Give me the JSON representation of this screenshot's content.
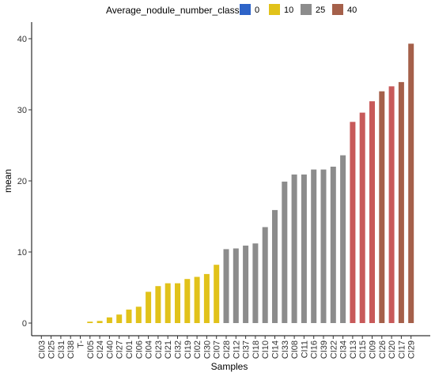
{
  "chart_data": {
    "type": "bar",
    "xlabel": "Samples",
    "ylabel": "mean",
    "ylim": [
      0,
      40
    ],
    "yticks": [
      0,
      10,
      20,
      30,
      40
    ],
    "grid": false,
    "legend": {
      "placement": "top",
      "title": "Average_nodule_number_class",
      "entries": [
        {
          "label": "0",
          "color": "#2e64c8"
        },
        {
          "label": "10",
          "color": "#e1c21a"
        },
        {
          "label": "25",
          "color": "#8c8c8c"
        },
        {
          "label": "40",
          "color": "#a5604a"
        }
      ]
    },
    "categories": [
      "CI03",
      "CI25",
      "CI31",
      "CI38",
      "T-",
      "CI05",
      "CI24",
      "CI40",
      "CI27",
      "CI01",
      "CI06",
      "CI04",
      "CI23",
      "CI21",
      "CI32",
      "CI19",
      "CI02",
      "CI30",
      "CI07",
      "CI28",
      "CI12",
      "CI37",
      "CI18",
      "CI10",
      "CI14",
      "CI33",
      "CI08",
      "CI11",
      "CI16",
      "CI39",
      "CI22",
      "CI34",
      "CI13",
      "CI15",
      "CI09",
      "CI26",
      "CI20",
      "CI17",
      "CI29"
    ],
    "values": [
      0,
      0,
      0,
      0,
      0,
      0.2,
      0.3,
      0.8,
      1.2,
      1.9,
      2.3,
      4.4,
      5.2,
      5.6,
      5.6,
      6.2,
      6.5,
      6.9,
      8.2,
      10.4,
      10.5,
      10.9,
      11.2,
      13.5,
      15.9,
      19.9,
      20.9,
      20.9,
      21.6,
      21.6,
      22.0,
      23.6,
      28.3,
      29.6,
      31.2,
      32.6,
      33.3,
      33.9,
      39.3
    ],
    "bar_colors": [
      "#2e64c8",
      "#2e64c8",
      "#2e64c8",
      "#2e64c8",
      "#2e64c8",
      "#e1c21a",
      "#e1c21a",
      "#e1c21a",
      "#e1c21a",
      "#e1c21a",
      "#e1c21a",
      "#e1c21a",
      "#e1c21a",
      "#e1c21a",
      "#e1c21a",
      "#e1c21a",
      "#e1c21a",
      "#e1c21a",
      "#e1c21a",
      "#8c8c8c",
      "#8c8c8c",
      "#8c8c8c",
      "#8c8c8c",
      "#8c8c8c",
      "#8c8c8c",
      "#8c8c8c",
      "#8c8c8c",
      "#8c8c8c",
      "#8c8c8c",
      "#8c8c8c",
      "#8c8c8c",
      "#8c8c8c",
      "#c85a5a",
      "#c85a5a",
      "#c85a5a",
      "#a5604a",
      "#c85a5a",
      "#a5604a",
      "#a5604a"
    ]
  }
}
